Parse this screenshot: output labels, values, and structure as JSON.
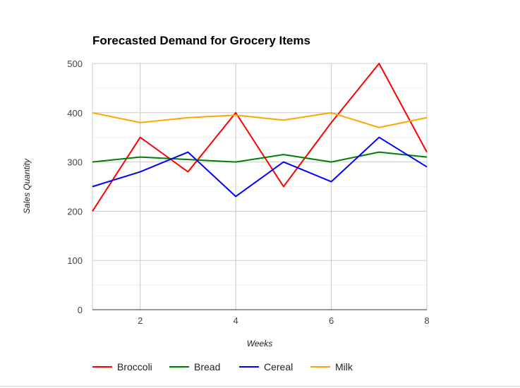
{
  "chart_data": {
    "type": "line",
    "title": "Forecasted Demand for Grocery Items",
    "xlabel": "Weeks",
    "ylabel": "Sales Quantity",
    "x": [
      1,
      2,
      3,
      4,
      5,
      6,
      7,
      8
    ],
    "xlim": [
      1,
      8
    ],
    "ylim": [
      0,
      500
    ],
    "x_ticks": [
      2,
      4,
      6,
      8
    ],
    "y_ticks": [
      0,
      100,
      200,
      300,
      400,
      500
    ],
    "grid": true,
    "legend_position": "bottom",
    "series": [
      {
        "name": "Broccoli",
        "color": "#ff0000",
        "values": [
          200,
          350,
          280,
          400,
          250,
          380,
          500,
          320
        ]
      },
      {
        "name": "Bread",
        "color": "#008000",
        "values": [
          300,
          310,
          305,
          300,
          315,
          300,
          320,
          310
        ]
      },
      {
        "name": "Cereal",
        "color": "#0000ff",
        "values": [
          250,
          280,
          320,
          230,
          300,
          260,
          350,
          290
        ]
      },
      {
        "name": "Milk",
        "color": "#ffa500",
        "values": [
          400,
          380,
          390,
          395,
          385,
          400,
          370,
          390
        ]
      }
    ]
  }
}
